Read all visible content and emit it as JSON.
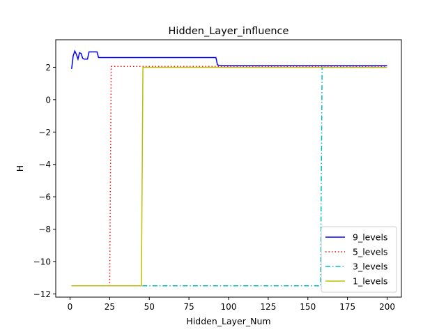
{
  "chart_data": {
    "type": "line",
    "title": "Hidden_Layer_influence",
    "xlabel": "Hidden_Layer_Num",
    "ylabel": "H",
    "xlim": [
      -9,
      209
    ],
    "ylim": [
      -12.2,
      3.7
    ],
    "xticks": [
      0,
      25,
      50,
      75,
      100,
      125,
      150,
      175,
      200
    ],
    "yticks": [
      2,
      0,
      -2,
      -4,
      -6,
      -8,
      -10,
      -12
    ],
    "ytick_labels": [
      "2",
      "0",
      "−2",
      "−4",
      "−6",
      "−8",
      "−10",
      "−12"
    ],
    "grid": false,
    "legend_position": "lower-right",
    "series": [
      {
        "name": "9_levels",
        "color": "#0000ff",
        "style": "solid",
        "x": [
          1,
          2,
          3,
          4,
          5,
          6,
          7,
          8,
          9,
          10,
          11,
          12,
          13,
          14,
          15,
          16,
          17,
          18,
          92,
          93,
          94,
          95,
          96,
          97,
          98,
          200
        ],
        "y": [
          1.9,
          2.7,
          3.0,
          2.8,
          2.5,
          2.9,
          2.85,
          2.55,
          2.5,
          2.5,
          2.5,
          2.95,
          2.95,
          2.95,
          2.95,
          2.95,
          2.95,
          2.6,
          2.6,
          2.15,
          2.12,
          2.1,
          2.1,
          2.1,
          2.1,
          2.1
        ]
      },
      {
        "name": "5_levels",
        "color": "#ff0000",
        "style": "dotted",
        "x": [
          1,
          25,
          26,
          46,
          200
        ],
        "y": [
          -11.5,
          -11.5,
          2.05,
          2.05,
          2.05
        ]
      },
      {
        "name": "3_levels",
        "color": "#00bfbf",
        "style": "dashdot",
        "x": [
          1,
          158,
          159,
          200
        ],
        "y": [
          -11.5,
          -11.5,
          2.0,
          2.0
        ]
      },
      {
        "name": "1_levels",
        "color": "#bfbf00",
        "style": "solid",
        "x": [
          1,
          45,
          46,
          200
        ],
        "y": [
          -11.5,
          -11.5,
          2.0,
          2.0
        ]
      }
    ]
  }
}
